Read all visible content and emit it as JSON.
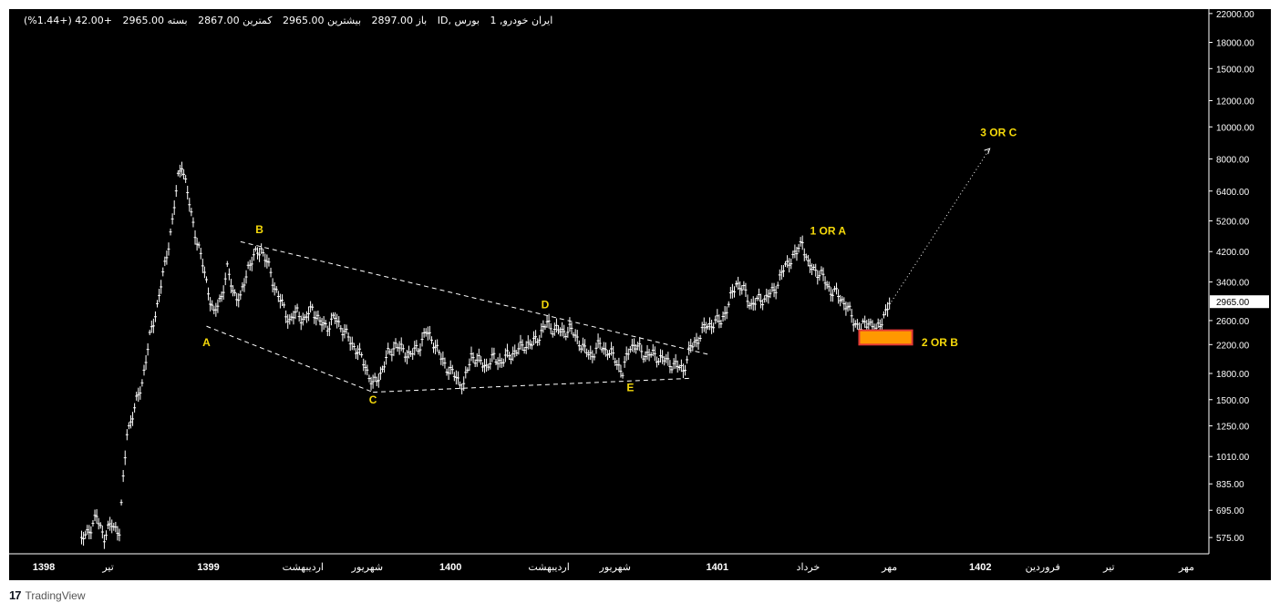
{
  "header": {
    "symbol": "ایران خودرو, 1",
    "market": "بورس ,ID",
    "open": "باز 2897.00",
    "high": "بیشترین 2965.00",
    "low": "کمترین 2867.00",
    "close": "بسته 2965.00",
    "change": "+42.00 (+1.44%)"
  },
  "branding": {
    "logo": "17",
    "name": "TradingView"
  },
  "colors": {
    "background": "#000000",
    "candles": "#ffffff",
    "annotation": "#f5d90a",
    "box_fill": "#ff9800",
    "box_border": "#e53935",
    "price_tag_bg": "#ffffff"
  },
  "chart_data": {
    "type": "line",
    "title": "",
    "ylabel": "",
    "xlabel": "",
    "y_scale": "log",
    "ylim": [
      520,
      22400
    ],
    "grid": false,
    "y_ticks": [
      "22000.00",
      "18000.00",
      "15000.00",
      "12000.00",
      "10000.00",
      "8000.00",
      "6400.00",
      "5200.00",
      "4200.00",
      "3400.00",
      "2600.00",
      "2200.00",
      "1800.00",
      "1500.00",
      "1250.00",
      "1010.00",
      "835.00",
      "695.00",
      "575.00"
    ],
    "last_price_label": "2965.00",
    "x_ticks": [
      {
        "label": "1398",
        "bold": true,
        "i": 0
      },
      {
        "label": "تیر",
        "bold": false,
        "i": 34
      },
      {
        "label": "1399",
        "bold": true,
        "i": 87
      },
      {
        "label": "اردیبهشت",
        "bold": false,
        "i": 137
      },
      {
        "label": "شهریور",
        "bold": false,
        "i": 171
      },
      {
        "label": "1400",
        "bold": true,
        "i": 215
      },
      {
        "label": "اردیبهشت",
        "bold": false,
        "i": 267
      },
      {
        "label": "شهریور",
        "bold": false,
        "i": 302
      },
      {
        "label": "1401",
        "bold": true,
        "i": 356
      },
      {
        "label": "خرداد",
        "bold": false,
        "i": 404
      },
      {
        "label": "مهر",
        "bold": false,
        "i": 447
      },
      {
        "label": "1402",
        "bold": true,
        "i": 495
      },
      {
        "label": "فروردین",
        "bold": false,
        "i": 528
      },
      {
        "label": "تیر",
        "bold": false,
        "i": 563
      },
      {
        "label": "مهر",
        "bold": false,
        "i": 604
      }
    ],
    "x_range": [
      0,
      611
    ],
    "series": [
      {
        "values": [
          {
            "i": 20,
            "v": 560
          },
          {
            "i": 25,
            "v": 620
          },
          {
            "i": 28,
            "v": 660
          },
          {
            "i": 32,
            "v": 580
          },
          {
            "i": 36,
            "v": 630
          },
          {
            "i": 40,
            "v": 600
          },
          {
            "i": 44,
            "v": 1200
          },
          {
            "i": 48,
            "v": 1400
          },
          {
            "i": 52,
            "v": 1700
          },
          {
            "i": 56,
            "v": 2300
          },
          {
            "i": 60,
            "v": 2900
          },
          {
            "i": 64,
            "v": 3800
          },
          {
            "i": 68,
            "v": 5200
          },
          {
            "i": 71,
            "v": 7000
          },
          {
            "i": 73,
            "v": 7800
          },
          {
            "i": 75,
            "v": 6800
          },
          {
            "i": 78,
            "v": 5400
          },
          {
            "i": 82,
            "v": 4300
          },
          {
            "i": 86,
            "v": 3400
          },
          {
            "i": 90,
            "v": 2700
          },
          {
            "i": 94,
            "v": 3100
          },
          {
            "i": 97,
            "v": 3700
          },
          {
            "i": 100,
            "v": 3200
          },
          {
            "i": 104,
            "v": 3000
          },
          {
            "i": 108,
            "v": 3800
          },
          {
            "i": 112,
            "v": 4100
          },
          {
            "i": 115,
            "v": 4300
          },
          {
            "i": 118,
            "v": 3900
          },
          {
            "i": 122,
            "v": 3300
          },
          {
            "i": 126,
            "v": 2900
          },
          {
            "i": 130,
            "v": 2600
          },
          {
            "i": 134,
            "v": 2750
          },
          {
            "i": 138,
            "v": 2600
          },
          {
            "i": 142,
            "v": 2850
          },
          {
            "i": 146,
            "v": 2550
          },
          {
            "i": 150,
            "v": 2500
          },
          {
            "i": 154,
            "v": 2650
          },
          {
            "i": 158,
            "v": 2450
          },
          {
            "i": 162,
            "v": 2250
          },
          {
            "i": 166,
            "v": 2100
          },
          {
            "i": 170,
            "v": 1900
          },
          {
            "i": 174,
            "v": 1650
          },
          {
            "i": 178,
            "v": 1800
          },
          {
            "i": 182,
            "v": 2050
          },
          {
            "i": 186,
            "v": 2200
          },
          {
            "i": 190,
            "v": 2100
          },
          {
            "i": 194,
            "v": 2050
          },
          {
            "i": 198,
            "v": 2150
          },
          {
            "i": 202,
            "v": 2400
          },
          {
            "i": 206,
            "v": 2250
          },
          {
            "i": 210,
            "v": 2000
          },
          {
            "i": 214,
            "v": 1850
          },
          {
            "i": 218,
            "v": 1750
          },
          {
            "i": 222,
            "v": 1650
          },
          {
            "i": 226,
            "v": 2050
          },
          {
            "i": 230,
            "v": 1950
          },
          {
            "i": 234,
            "v": 1900
          },
          {
            "i": 238,
            "v": 2000
          },
          {
            "i": 242,
            "v": 1950
          },
          {
            "i": 246,
            "v": 2050
          },
          {
            "i": 250,
            "v": 2100
          },
          {
            "i": 254,
            "v": 2200
          },
          {
            "i": 258,
            "v": 2200
          },
          {
            "i": 262,
            "v": 2350
          },
          {
            "i": 266,
            "v": 2550
          },
          {
            "i": 270,
            "v": 2450
          },
          {
            "i": 274,
            "v": 2400
          },
          {
            "i": 278,
            "v": 2450
          },
          {
            "i": 282,
            "v": 2300
          },
          {
            "i": 286,
            "v": 2100
          },
          {
            "i": 290,
            "v": 2050
          },
          {
            "i": 294,
            "v": 2200
          },
          {
            "i": 298,
            "v": 2100
          },
          {
            "i": 302,
            "v": 2000
          },
          {
            "i": 306,
            "v": 1800
          },
          {
            "i": 310,
            "v": 2200
          },
          {
            "i": 314,
            "v": 2150
          },
          {
            "i": 318,
            "v": 2050
          },
          {
            "i": 322,
            "v": 2050
          },
          {
            "i": 326,
            "v": 2000
          },
          {
            "i": 330,
            "v": 1950
          },
          {
            "i": 334,
            "v": 1900
          },
          {
            "i": 338,
            "v": 1850
          },
          {
            "i": 342,
            "v": 2150
          },
          {
            "i": 346,
            "v": 2300
          },
          {
            "i": 350,
            "v": 2500
          },
          {
            "i": 354,
            "v": 2550
          },
          {
            "i": 358,
            "v": 2600
          },
          {
            "i": 362,
            "v": 2900
          },
          {
            "i": 366,
            "v": 3400
          },
          {
            "i": 370,
            "v": 3200
          },
          {
            "i": 374,
            "v": 2900
          },
          {
            "i": 378,
            "v": 3000
          },
          {
            "i": 382,
            "v": 3050
          },
          {
            "i": 386,
            "v": 3200
          },
          {
            "i": 390,
            "v": 3600
          },
          {
            "i": 394,
            "v": 3950
          },
          {
            "i": 398,
            "v": 4150
          },
          {
            "i": 401,
            "v": 4550
          },
          {
            "i": 404,
            "v": 3800
          },
          {
            "i": 408,
            "v": 3700
          },
          {
            "i": 412,
            "v": 3500
          },
          {
            "i": 416,
            "v": 3200
          },
          {
            "i": 420,
            "v": 3100
          },
          {
            "i": 424,
            "v": 2900
          },
          {
            "i": 428,
            "v": 2600
          },
          {
            "i": 432,
            "v": 2450
          },
          {
            "i": 436,
            "v": 2600
          },
          {
            "i": 440,
            "v": 2400
          },
          {
            "i": 444,
            "v": 2700
          },
          {
            "i": 448,
            "v": 2965
          }
        ]
      }
    ],
    "annotations": [
      {
        "label": "A",
        "i": 86,
        "v": 2230
      },
      {
        "label": "B",
        "i": 114,
        "v": 4900
      },
      {
        "label": "C",
        "i": 174,
        "v": 1500
      },
      {
        "label": "D",
        "i": 265,
        "v": 2900
      },
      {
        "label": "E",
        "i": 310,
        "v": 1630
      },
      {
        "label": "1 OR A",
        "i": 405,
        "v": 4850
      },
      {
        "label": "2 OR B",
        "i": 464,
        "v": 2230
      },
      {
        "label": "3 OR C",
        "i": 495,
        "v": 9600
      }
    ]
  }
}
